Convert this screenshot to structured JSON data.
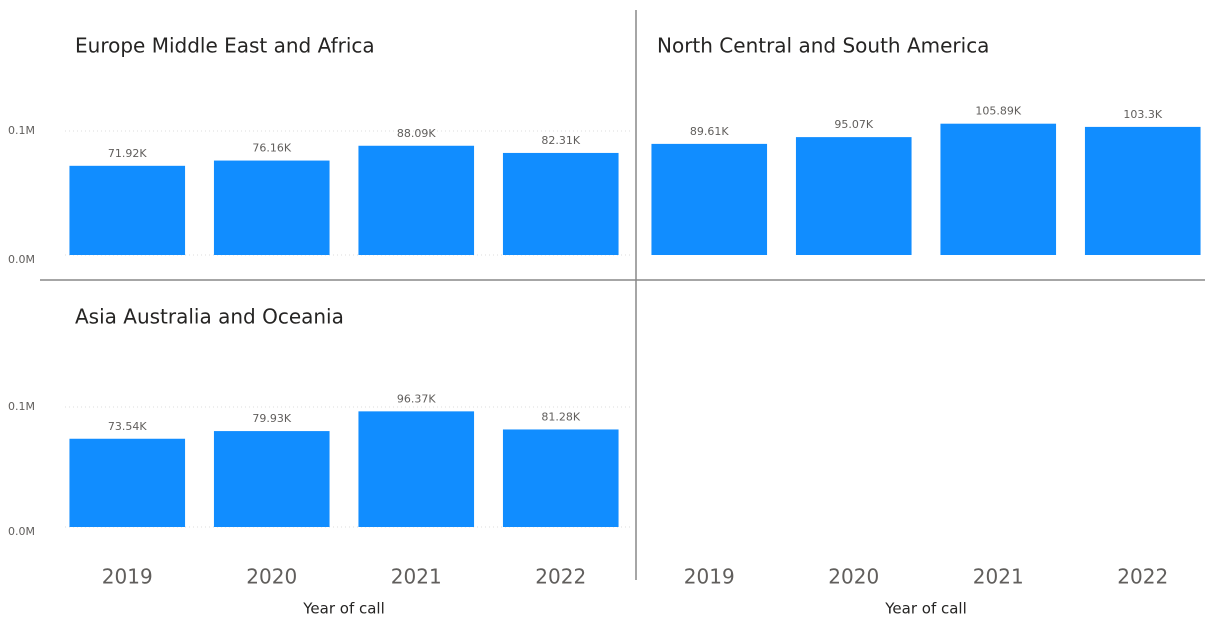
{
  "chart_data": [
    {
      "type": "bar",
      "title": "Europe Middle East and Africa",
      "values": [
        71920,
        76160,
        88090,
        82310
      ],
      "value_labels": [
        "71.92K",
        "76.16K",
        "88.09K",
        "82.31K"
      ],
      "color": "#118dff",
      "ylim": [
        0,
        125000
      ],
      "yticks": [
        {
          "value": 0,
          "label": "0.0M"
        },
        {
          "value": 100000,
          "label": "0.1M"
        }
      ],
      "grid": true
    },
    {
      "type": "bar",
      "title": "North Central and South America",
      "categories": [
        "2019",
        "2020",
        "2021",
        "2022"
      ],
      "values": [
        89610,
        95070,
        105890,
        103300
      ],
      "value_labels": [
        "89.61K",
        "95.07K",
        "105.89K",
        "103.3K"
      ],
      "xlabel": "Year of call",
      "color": "#118dff",
      "ylim": [
        0,
        125000
      ],
      "grid": true
    },
    {
      "type": "bar",
      "title": "Asia Australia and Oceania",
      "categories": [
        "2019",
        "2020",
        "2021",
        "2022"
      ],
      "values": [
        73540,
        79930,
        96370,
        81280
      ],
      "value_labels": [
        "73.54K",
        "79.93K",
        "96.37K",
        "81.28K"
      ],
      "xlabel": "Year of call",
      "color": "#118dff",
      "ylim": [
        0,
        125000
      ],
      "yticks": [
        {
          "value": 0,
          "label": "0.0M"
        },
        {
          "value": 100000,
          "label": "0.1M"
        }
      ],
      "grid": true
    }
  ]
}
